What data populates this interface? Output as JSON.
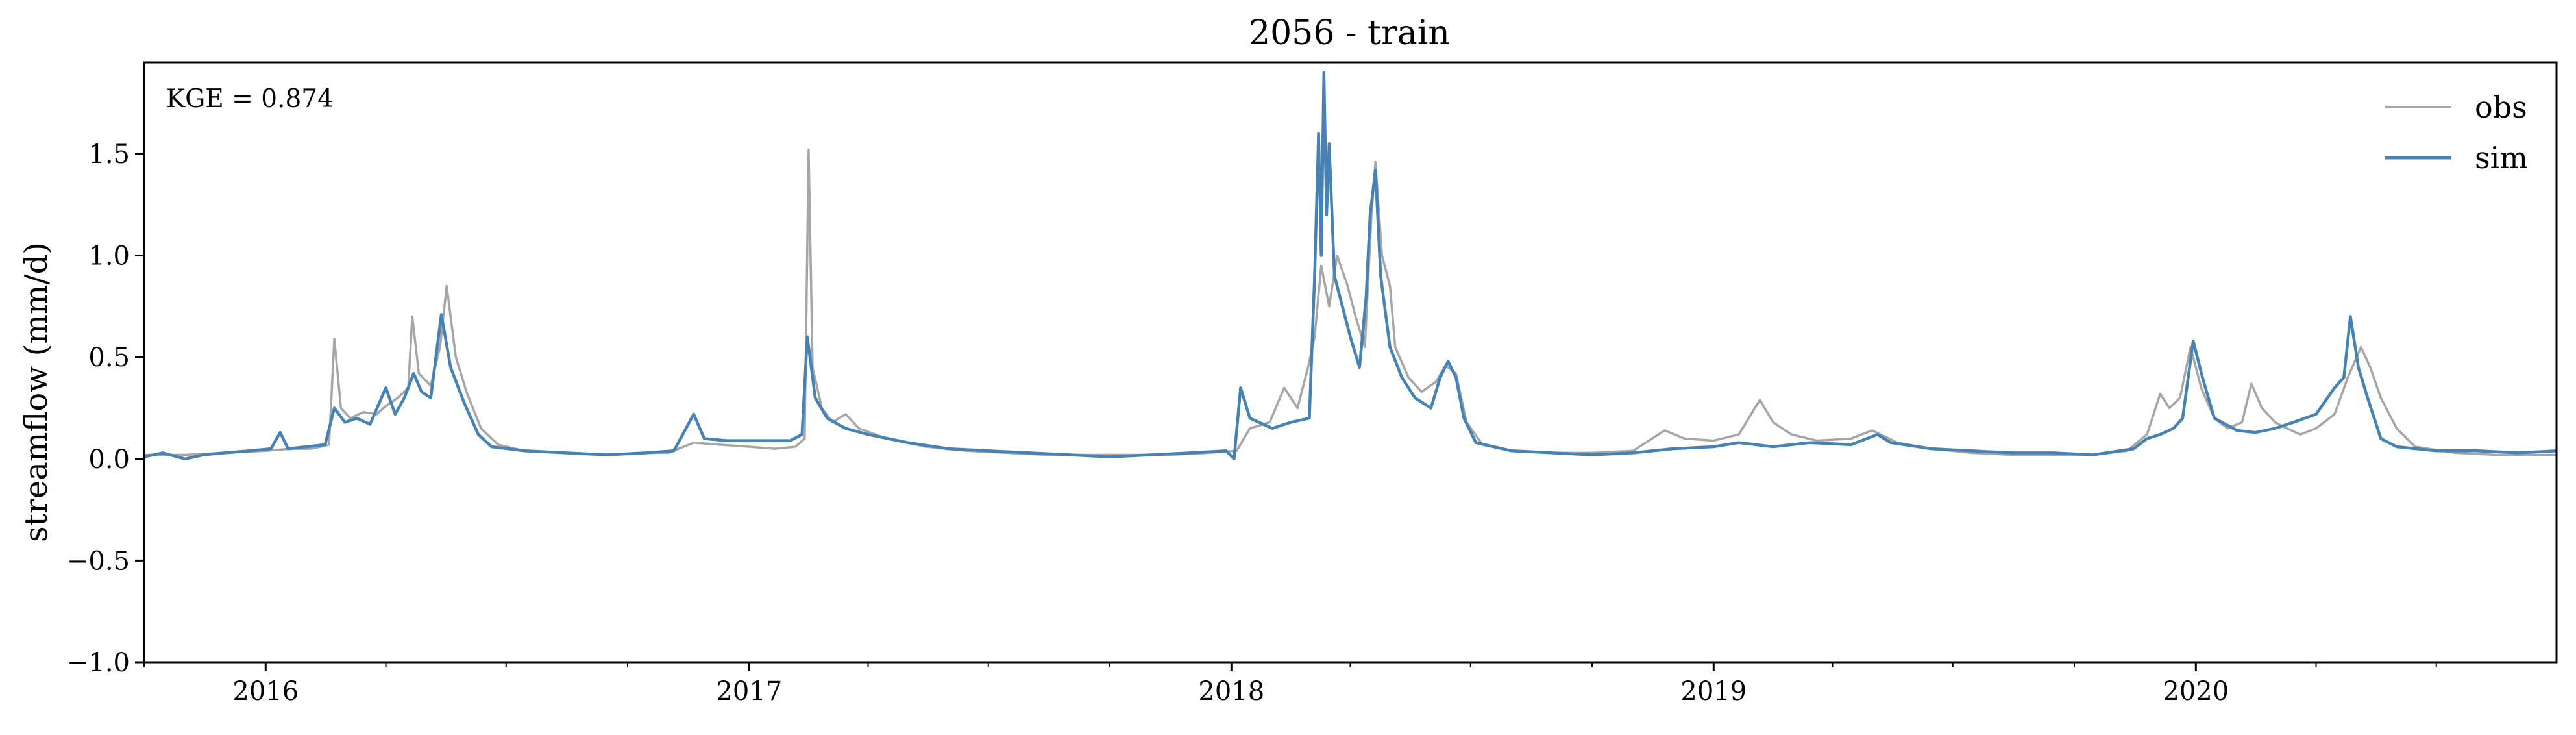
{
  "chart_data": {
    "type": "line",
    "title": "2056 - train",
    "xlabel": "",
    "ylabel": "streamflow (mm/d)",
    "annotation": "KGE = 0.874",
    "xlim": [
      "2015-10-01",
      "2020-09-30"
    ],
    "ylim": [
      -1.0,
      1.95
    ],
    "grid": false,
    "legend_position": "top-right",
    "x_ticks": [
      {
        "date": "2016-01-01",
        "label": "2016"
      },
      {
        "date": "2017-01-01",
        "label": "2017"
      },
      {
        "date": "2018-01-01",
        "label": "2018"
      },
      {
        "date": "2019-01-01",
        "label": "2019"
      },
      {
        "date": "2020-01-01",
        "label": "2020"
      }
    ],
    "y_ticks": [
      {
        "value": -1.0,
        "label": "−1.0"
      },
      {
        "value": -0.5,
        "label": "−0.5"
      },
      {
        "value": 0.0,
        "label": "0.0"
      },
      {
        "value": 0.5,
        "label": "0.5"
      },
      {
        "value": 1.0,
        "label": "1.0"
      },
      {
        "value": 1.5,
        "label": "1.5"
      }
    ],
    "series": [
      {
        "name": "obs",
        "color": "#a6a6a6",
        "points": [
          [
            "2015-10-01",
            0.02
          ],
          [
            "2015-11-01",
            0.02
          ],
          [
            "2015-12-01",
            0.03
          ],
          [
            "2016-01-01",
            0.04
          ],
          [
            "2016-01-20",
            0.05
          ],
          [
            "2016-02-05",
            0.05
          ],
          [
            "2016-02-18",
            0.07
          ],
          [
            "2016-02-22",
            0.59
          ],
          [
            "2016-02-27",
            0.25
          ],
          [
            "2016-03-05",
            0.2
          ],
          [
            "2016-03-15",
            0.23
          ],
          [
            "2016-03-25",
            0.22
          ],
          [
            "2016-04-01",
            0.26
          ],
          [
            "2016-04-10",
            0.3
          ],
          [
            "2016-04-18",
            0.35
          ],
          [
            "2016-04-21",
            0.7
          ],
          [
            "2016-04-26",
            0.42
          ],
          [
            "2016-05-05",
            0.36
          ],
          [
            "2016-05-12",
            0.55
          ],
          [
            "2016-05-17",
            0.85
          ],
          [
            "2016-05-24",
            0.5
          ],
          [
            "2016-06-01",
            0.33
          ],
          [
            "2016-06-12",
            0.15
          ],
          [
            "2016-06-25",
            0.07
          ],
          [
            "2016-07-15",
            0.04
          ],
          [
            "2016-08-15",
            0.03
          ],
          [
            "2016-09-15",
            0.02
          ],
          [
            "2016-10-15",
            0.03
          ],
          [
            "2016-11-01",
            0.03
          ],
          [
            "2016-11-20",
            0.08
          ],
          [
            "2016-12-10",
            0.07
          ],
          [
            "2017-01-01",
            0.06
          ],
          [
            "2017-01-20",
            0.05
          ],
          [
            "2017-02-05",
            0.06
          ],
          [
            "2017-02-12",
            0.1
          ],
          [
            "2017-02-15",
            1.52
          ],
          [
            "2017-02-18",
            0.45
          ],
          [
            "2017-02-25",
            0.25
          ],
          [
            "2017-03-05",
            0.18
          ],
          [
            "2017-03-15",
            0.22
          ],
          [
            "2017-03-25",
            0.15
          ],
          [
            "2017-04-15",
            0.1
          ],
          [
            "2017-05-15",
            0.06
          ],
          [
            "2017-06-15",
            0.04
          ],
          [
            "2017-07-15",
            0.03
          ],
          [
            "2017-08-15",
            0.02
          ],
          [
            "2017-09-15",
            0.02
          ],
          [
            "2017-10-15",
            0.02
          ],
          [
            "2017-11-15",
            0.02
          ],
          [
            "2017-12-15",
            0.03
          ],
          [
            "2018-01-05",
            0.04
          ],
          [
            "2018-01-15",
            0.15
          ],
          [
            "2018-01-30",
            0.18
          ],
          [
            "2018-02-10",
            0.35
          ],
          [
            "2018-02-20",
            0.25
          ],
          [
            "2018-02-28",
            0.45
          ],
          [
            "2018-03-05",
            0.6
          ],
          [
            "2018-03-10",
            0.95
          ],
          [
            "2018-03-16",
            0.75
          ],
          [
            "2018-03-22",
            1.0
          ],
          [
            "2018-03-30",
            0.85
          ],
          [
            "2018-04-05",
            0.7
          ],
          [
            "2018-04-12",
            0.55
          ],
          [
            "2018-04-17",
            1.2
          ],
          [
            "2018-04-20",
            1.46
          ],
          [
            "2018-04-25",
            1.0
          ],
          [
            "2018-05-01",
            0.85
          ],
          [
            "2018-05-05",
            0.55
          ],
          [
            "2018-05-15",
            0.4
          ],
          [
            "2018-05-25",
            0.33
          ],
          [
            "2018-06-05",
            0.38
          ],
          [
            "2018-06-12",
            0.46
          ],
          [
            "2018-06-20",
            0.42
          ],
          [
            "2018-06-28",
            0.18
          ],
          [
            "2018-07-10",
            0.07
          ],
          [
            "2018-08-01",
            0.04
          ],
          [
            "2018-09-01",
            0.03
          ],
          [
            "2018-10-01",
            0.03
          ],
          [
            "2018-11-01",
            0.04
          ],
          [
            "2018-11-25",
            0.14
          ],
          [
            "2018-12-10",
            0.1
          ],
          [
            "2019-01-01",
            0.09
          ],
          [
            "2019-01-20",
            0.12
          ],
          [
            "2019-02-05",
            0.29
          ],
          [
            "2019-02-15",
            0.18
          ],
          [
            "2019-03-01",
            0.12
          ],
          [
            "2019-03-20",
            0.09
          ],
          [
            "2019-04-15",
            0.1
          ],
          [
            "2019-05-01",
            0.14
          ],
          [
            "2019-05-20",
            0.08
          ],
          [
            "2019-06-15",
            0.05
          ],
          [
            "2019-07-15",
            0.03
          ],
          [
            "2019-08-15",
            0.02
          ],
          [
            "2019-09-15",
            0.02
          ],
          [
            "2019-10-15",
            0.02
          ],
          [
            "2019-11-10",
            0.04
          ],
          [
            "2019-11-25",
            0.12
          ],
          [
            "2019-12-05",
            0.32
          ],
          [
            "2019-12-12",
            0.25
          ],
          [
            "2019-12-20",
            0.3
          ],
          [
            "2019-12-28",
            0.55
          ],
          [
            "2020-01-05",
            0.35
          ],
          [
            "2020-01-15",
            0.2
          ],
          [
            "2020-01-25",
            0.15
          ],
          [
            "2020-02-05",
            0.18
          ],
          [
            "2020-02-12",
            0.37
          ],
          [
            "2020-02-20",
            0.25
          ],
          [
            "2020-03-01",
            0.18
          ],
          [
            "2020-03-10",
            0.15
          ],
          [
            "2020-03-20",
            0.12
          ],
          [
            "2020-04-01",
            0.15
          ],
          [
            "2020-04-15",
            0.22
          ],
          [
            "2020-04-25",
            0.4
          ],
          [
            "2020-05-05",
            0.55
          ],
          [
            "2020-05-12",
            0.45
          ],
          [
            "2020-05-20",
            0.3
          ],
          [
            "2020-06-01",
            0.15
          ],
          [
            "2020-06-15",
            0.06
          ],
          [
            "2020-07-15",
            0.03
          ],
          [
            "2020-08-15",
            0.02
          ],
          [
            "2020-09-30",
            0.02
          ]
        ]
      },
      {
        "name": "sim",
        "color": "#4682b4",
        "points": [
          [
            "2015-10-01",
            0.01
          ],
          [
            "2015-10-15",
            0.03
          ],
          [
            "2015-11-01",
            0.0
          ],
          [
            "2015-11-15",
            0.02
          ],
          [
            "2015-12-01",
            0.03
          ],
          [
            "2015-12-20",
            0.04
          ],
          [
            "2016-01-05",
            0.05
          ],
          [
            "2016-01-12",
            0.13
          ],
          [
            "2016-01-18",
            0.05
          ],
          [
            "2016-02-01",
            0.06
          ],
          [
            "2016-02-15",
            0.07
          ],
          [
            "2016-02-22",
            0.25
          ],
          [
            "2016-03-01",
            0.18
          ],
          [
            "2016-03-10",
            0.2
          ],
          [
            "2016-03-20",
            0.17
          ],
          [
            "2016-04-01",
            0.35
          ],
          [
            "2016-04-08",
            0.22
          ],
          [
            "2016-04-15",
            0.3
          ],
          [
            "2016-04-22",
            0.42
          ],
          [
            "2016-04-28",
            0.33
          ],
          [
            "2016-05-05",
            0.3
          ],
          [
            "2016-05-13",
            0.71
          ],
          [
            "2016-05-20",
            0.45
          ],
          [
            "2016-05-30",
            0.28
          ],
          [
            "2016-06-10",
            0.12
          ],
          [
            "2016-06-20",
            0.06
          ],
          [
            "2016-07-15",
            0.04
          ],
          [
            "2016-08-15",
            0.03
          ],
          [
            "2016-09-15",
            0.02
          ],
          [
            "2016-10-15",
            0.03
          ],
          [
            "2016-11-05",
            0.04
          ],
          [
            "2016-11-20",
            0.22
          ],
          [
            "2016-11-28",
            0.1
          ],
          [
            "2016-12-15",
            0.09
          ],
          [
            "2017-01-10",
            0.09
          ],
          [
            "2017-02-01",
            0.09
          ],
          [
            "2017-02-10",
            0.12
          ],
          [
            "2017-02-14",
            0.6
          ],
          [
            "2017-02-20",
            0.3
          ],
          [
            "2017-03-01",
            0.2
          ],
          [
            "2017-03-15",
            0.15
          ],
          [
            "2017-04-01",
            0.12
          ],
          [
            "2017-05-01",
            0.08
          ],
          [
            "2017-06-01",
            0.05
          ],
          [
            "2017-07-01",
            0.04
          ],
          [
            "2017-08-01",
            0.03
          ],
          [
            "2017-09-01",
            0.02
          ],
          [
            "2017-10-01",
            0.01
          ],
          [
            "2017-11-01",
            0.02
          ],
          [
            "2017-12-01",
            0.03
          ],
          [
            "2017-12-28",
            0.04
          ],
          [
            "2018-01-03",
            0.0
          ],
          [
            "2018-01-08",
            0.35
          ],
          [
            "2018-01-15",
            0.2
          ],
          [
            "2018-02-01",
            0.15
          ],
          [
            "2018-02-15",
            0.18
          ],
          [
            "2018-03-01",
            0.2
          ],
          [
            "2018-03-05",
            0.9
          ],
          [
            "2018-03-08",
            1.6
          ],
          [
            "2018-03-10",
            1.0
          ],
          [
            "2018-03-12",
            1.9
          ],
          [
            "2018-03-14",
            1.2
          ],
          [
            "2018-03-16",
            1.55
          ],
          [
            "2018-03-20",
            0.9
          ],
          [
            "2018-03-26",
            0.75
          ],
          [
            "2018-04-01",
            0.6
          ],
          [
            "2018-04-08",
            0.45
          ],
          [
            "2018-04-13",
            0.8
          ],
          [
            "2018-04-16",
            1.2
          ],
          [
            "2018-04-20",
            1.42
          ],
          [
            "2018-04-24",
            0.9
          ],
          [
            "2018-05-01",
            0.55
          ],
          [
            "2018-05-10",
            0.4
          ],
          [
            "2018-05-20",
            0.3
          ],
          [
            "2018-06-01",
            0.25
          ],
          [
            "2018-06-08",
            0.4
          ],
          [
            "2018-06-14",
            0.48
          ],
          [
            "2018-06-20",
            0.4
          ],
          [
            "2018-06-26",
            0.2
          ],
          [
            "2018-07-05",
            0.08
          ],
          [
            "2018-08-01",
            0.04
          ],
          [
            "2018-09-01",
            0.03
          ],
          [
            "2018-10-01",
            0.02
          ],
          [
            "2018-11-01",
            0.03
          ],
          [
            "2018-12-01",
            0.05
          ],
          [
            "2019-01-01",
            0.06
          ],
          [
            "2019-01-20",
            0.08
          ],
          [
            "2019-02-15",
            0.06
          ],
          [
            "2019-03-15",
            0.08
          ],
          [
            "2019-04-15",
            0.07
          ],
          [
            "2019-05-05",
            0.12
          ],
          [
            "2019-05-15",
            0.08
          ],
          [
            "2019-06-15",
            0.05
          ],
          [
            "2019-07-15",
            0.04
          ],
          [
            "2019-08-15",
            0.03
          ],
          [
            "2019-09-15",
            0.03
          ],
          [
            "2019-10-15",
            0.02
          ],
          [
            "2019-11-15",
            0.05
          ],
          [
            "2019-11-25",
            0.1
          ],
          [
            "2019-12-05",
            0.12
          ],
          [
            "2019-12-15",
            0.15
          ],
          [
            "2019-12-22",
            0.2
          ],
          [
            "2019-12-30",
            0.58
          ],
          [
            "2020-01-06",
            0.4
          ],
          [
            "2020-01-15",
            0.2
          ],
          [
            "2020-02-01",
            0.14
          ],
          [
            "2020-02-15",
            0.13
          ],
          [
            "2020-03-01",
            0.15
          ],
          [
            "2020-03-15",
            0.18
          ],
          [
            "2020-04-01",
            0.22
          ],
          [
            "2020-04-15",
            0.35
          ],
          [
            "2020-04-22",
            0.4
          ],
          [
            "2020-04-27",
            0.7
          ],
          [
            "2020-05-03",
            0.45
          ],
          [
            "2020-05-10",
            0.3
          ],
          [
            "2020-05-20",
            0.1
          ],
          [
            "2020-06-01",
            0.06
          ],
          [
            "2020-07-01",
            0.04
          ],
          [
            "2020-08-01",
            0.04
          ],
          [
            "2020-09-01",
            0.03
          ],
          [
            "2020-09-30",
            0.04
          ]
        ]
      }
    ]
  }
}
